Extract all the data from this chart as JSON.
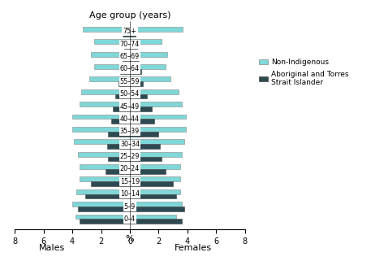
{
  "age_groups": [
    "0–4",
    "5–9",
    "10–14",
    "15–19",
    "20–24",
    "25–29",
    "30–34",
    "35–39",
    "40–44",
    "45–49",
    "50–54",
    "55–59",
    "60–64",
    "65–69",
    "70–74",
    "75+"
  ],
  "male_nonindigenous": [
    3.8,
    4.0,
    3.7,
    3.5,
    3.5,
    3.6,
    3.9,
    4.0,
    4.0,
    3.5,
    3.4,
    2.8,
    2.5,
    2.7,
    2.5,
    3.3
  ],
  "male_indigenous": [
    3.5,
    3.6,
    3.1,
    2.7,
    1.7,
    1.5,
    1.6,
    1.5,
    1.3,
    1.2,
    1.0,
    0.8,
    0.7,
    0.5,
    0.4,
    0.5
  ],
  "female_nonindigenous": [
    3.2,
    3.6,
    3.5,
    3.5,
    3.5,
    3.6,
    3.8,
    3.9,
    3.9,
    3.6,
    3.4,
    2.8,
    2.5,
    2.6,
    2.2,
    3.7
  ],
  "female_indigenous": [
    3.6,
    3.8,
    3.2,
    3.0,
    2.5,
    2.2,
    2.1,
    2.0,
    1.7,
    1.5,
    1.2,
    0.9,
    0.8,
    0.6,
    0.5,
    0.4
  ],
  "color_nonindigenous": "#7fd7d7",
  "color_indigenous": "#2d4a52",
  "title": "Age group (years)",
  "xlabel_center": "%",
  "xlabel_left": "Males",
  "xlabel_right": "Females",
  "xlim": 8,
  "legend_nonindigenous": "Non-Indigenous",
  "legend_indigenous": "Aboriginal and Torres\nStrait Islander",
  "background_color": "#ffffff"
}
